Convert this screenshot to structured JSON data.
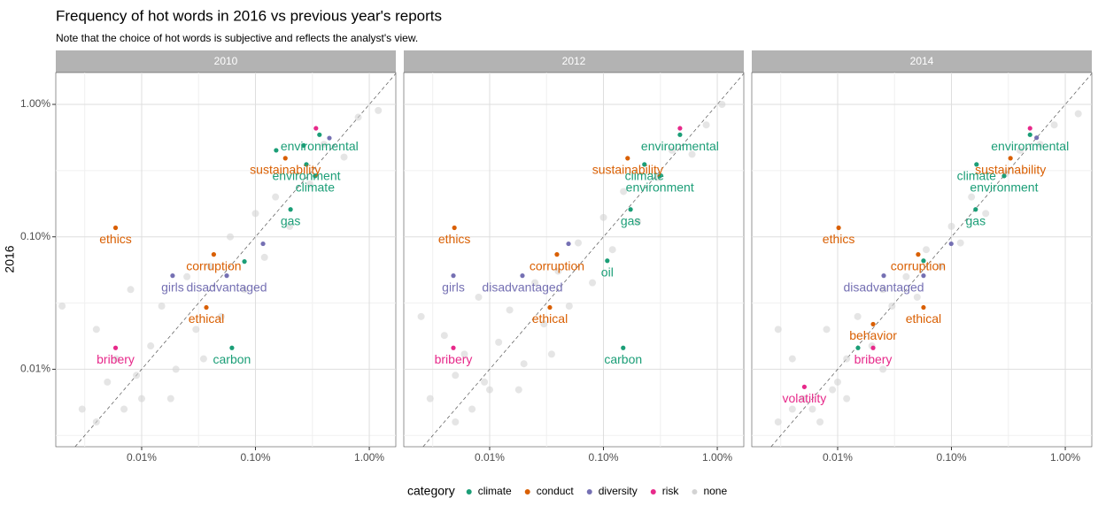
{
  "chart_data": {
    "type": "scatter",
    "title": "Frequency of hot words in 2016 vs previous year's reports",
    "subtitle": "Note that the choice of hot words is subjective and reflects the analyst's view.",
    "ylabel": "2016",
    "legend_title": "category",
    "facets": [
      "2010",
      "2012",
      "2014"
    ],
    "log_x": true,
    "log_y": true,
    "grid": true,
    "legend": "bottom",
    "xlim": [
      0.00176,
      1.71
    ],
    "ylim": [
      0.0026,
      1.74
    ],
    "xticks": [
      {
        "value": 0.01,
        "label": "0.01%"
      },
      {
        "value": 0.1,
        "label": "0.10%"
      },
      {
        "value": 1,
        "label": "1.00%"
      }
    ],
    "yticks": [
      {
        "value": 0.01,
        "label": "0.01%"
      },
      {
        "value": 0.1,
        "label": "0.10%"
      },
      {
        "value": 1,
        "label": "1.00%"
      }
    ],
    "series": [
      {
        "name": "none",
        "color": "#d3d3d3",
        "facets": [
          {
            "x": [
              0.003,
              0.004,
              0.005,
              0.006,
              0.008,
              0.01,
              0.012,
              0.015,
              0.02,
              0.025,
              0.03,
              0.04,
              0.05,
              0.06,
              0.08,
              0.1,
              0.12,
              0.15,
              0.2,
              0.3,
              0.4,
              0.6,
              0.8,
              1.2,
              0.004,
              0.007,
              0.009,
              0.018,
              0.035,
              0.002
            ],
            "y": [
              0.005,
              0.02,
              0.008,
              0.012,
              0.04,
              0.006,
              0.015,
              0.03,
              0.01,
              0.05,
              0.02,
              0.06,
              0.025,
              0.1,
              0.04,
              0.15,
              0.07,
              0.2,
              0.12,
              0.25,
              0.5,
              0.4,
              0.8,
              0.9,
              0.004,
              0.005,
              0.009,
              0.006,
              0.012,
              0.03
            ]
          },
          {
            "x": [
              0.003,
              0.004,
              0.005,
              0.006,
              0.008,
              0.01,
              0.012,
              0.015,
              0.02,
              0.025,
              0.03,
              0.04,
              0.05,
              0.06,
              0.08,
              0.1,
              0.12,
              0.15,
              0.2,
              0.3,
              0.4,
              0.6,
              0.8,
              1.1,
              0.005,
              0.007,
              0.009,
              0.018,
              0.035,
              0.0025
            ],
            "y": [
              0.006,
              0.018,
              0.009,
              0.013,
              0.035,
              0.007,
              0.016,
              0.028,
              0.011,
              0.045,
              0.022,
              0.055,
              0.03,
              0.09,
              0.045,
              0.14,
              0.08,
              0.22,
              0.13,
              0.28,
              0.45,
              0.42,
              0.7,
              1.0,
              0.004,
              0.005,
              0.008,
              0.007,
              0.013,
              0.025
            ]
          },
          {
            "x": [
              0.003,
              0.004,
              0.005,
              0.006,
              0.008,
              0.01,
              0.012,
              0.015,
              0.02,
              0.025,
              0.03,
              0.04,
              0.05,
              0.06,
              0.08,
              0.1,
              0.12,
              0.15,
              0.2,
              0.3,
              0.4,
              0.6,
              0.8,
              1.3,
              0.004,
              0.007,
              0.009,
              0.012,
              0.025,
              0.003
            ],
            "y": [
              0.004,
              0.012,
              0.006,
              0.005,
              0.02,
              0.008,
              0.012,
              0.025,
              0.015,
              0.04,
              0.03,
              0.05,
              0.035,
              0.08,
              0.06,
              0.12,
              0.09,
              0.2,
              0.15,
              0.3,
              0.45,
              0.5,
              0.7,
              0.85,
              0.005,
              0.004,
              0.007,
              0.006,
              0.01,
              0.02
            ]
          }
        ]
      },
      {
        "name": "climate",
        "color": "#1b9e77",
        "facets": [
          {
            "x": [
              0.0621,
              0.08,
              0.2033,
              0.334,
              0.28,
              0.365,
              0.152,
              0.265
            ],
            "y": [
              0.0145,
              0.0651,
              0.161,
              0.288,
              0.352,
              0.59,
              0.45,
              0.49
            ],
            "labels": [
              "carbon",
              null,
              "gas",
              "climate",
              "environment",
              "environmental",
              null,
              null
            ]
          },
          {
            "x": [
              0.108,
              0.149,
              0.173,
              0.229,
              0.313,
              0.47
            ],
            "y": [
              0.066,
              0.0145,
              0.161,
              0.352,
              0.288,
              0.59
            ],
            "labels": [
              "oil",
              "carbon",
              "gas",
              "climate",
              "environment",
              "environmental"
            ]
          },
          {
            "x": [
              0.0568,
              0.0151,
              0.163,
              0.166,
              0.29,
              0.49
            ],
            "y": [
              0.066,
              0.0145,
              0.161,
              0.352,
              0.288,
              0.59
            ],
            "labels": [
              null,
              null,
              "gas",
              "climate",
              "environment",
              "environmental"
            ]
          }
        ]
      },
      {
        "name": "conduct",
        "color": "#d95f02",
        "facets": [
          {
            "x": [
              0.0059,
              0.043,
              0.037,
              0.183
            ],
            "y": [
              0.117,
              0.0736,
              0.0293,
              0.392
            ],
            "labels": [
              "ethics",
              "corruption",
              "ethical",
              "sustainability"
            ]
          },
          {
            "x": [
              0.0049,
              0.039,
              0.0338,
              0.163
            ],
            "y": [
              0.117,
              0.0736,
              0.0293,
              0.392
            ],
            "labels": [
              "ethics",
              "corruption",
              "ethical",
              "sustainability"
            ]
          },
          {
            "x": [
              0.0102,
              0.051,
              0.0568,
              0.0205,
              0.33
            ],
            "y": [
              0.117,
              0.0736,
              0.0293,
              0.0219,
              0.392
            ],
            "labels": [
              "ethics",
              "corruption",
              "ethical",
              "behavior",
              "sustainability"
            ]
          }
        ]
      },
      {
        "name": "diversity",
        "color": "#7570b3",
        "facets": [
          {
            "x": [
              0.0187,
              0.0559,
              0.1165,
              0.446
            ],
            "y": [
              0.0509,
              0.0509,
              0.0886,
              0.557
            ],
            "labels": [
              "girls",
              "disadvantaged",
              null,
              null
            ]
          },
          {
            "x": [
              0.0048,
              0.0194,
              0.0493
            ],
            "y": [
              0.0509,
              0.0509,
              0.0886
            ],
            "labels": [
              "girls",
              "disadvantaged",
              null
            ]
          },
          {
            "x": [
              0.0254,
              0.0568,
              0.0995,
              0.56
            ],
            "y": [
              0.0509,
              0.0509,
              0.0886,
              0.56
            ],
            "labels": [
              "disadvantaged",
              null,
              null,
              null
            ]
          }
        ]
      },
      {
        "name": "risk",
        "color": "#e7298a",
        "facets": [
          {
            "x": [
              0.0059,
              0.34
            ],
            "y": [
              0.0145,
              0.66
            ],
            "labels": [
              "bribery",
              null
            ]
          },
          {
            "x": [
              0.0048,
              0.47
            ],
            "y": [
              0.0145,
              0.66
            ],
            "labels": [
              "bribery",
              null
            ]
          },
          {
            "x": [
              0.0205,
              0.0051,
              0.49
            ],
            "y": [
              0.0145,
              0.00736,
              0.66
            ],
            "labels": [
              "bribery",
              "volatility",
              null
            ]
          }
        ]
      }
    ],
    "legend_order": [
      1,
      2,
      3,
      4,
      0
    ]
  }
}
